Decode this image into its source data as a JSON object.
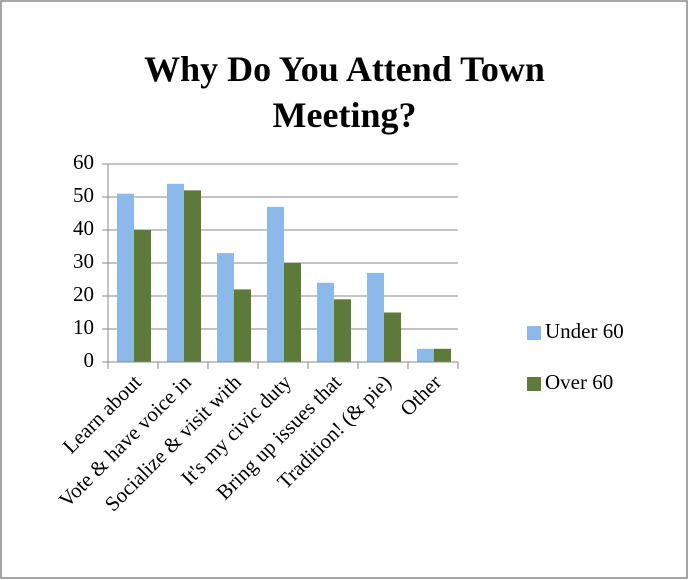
{
  "chart_data": {
    "type": "bar",
    "title": "Why Do You Attend Town Meeting?",
    "categories": [
      "Learn about",
      "Vote & have voice in",
      "Socialize & visit with",
      "It's my civic duty",
      "Bring up issues that",
      "Tradition! (& pie)",
      "Other"
    ],
    "series": [
      {
        "name": "Under 60",
        "color": "#8db8ea",
        "values": [
          51,
          54,
          33,
          47,
          24,
          27,
          4
        ]
      },
      {
        "name": "Over 60",
        "color": "#5e7a3a",
        "values": [
          40,
          52,
          22,
          30,
          19,
          15,
          4
        ]
      }
    ],
    "ylim": [
      0,
      60
    ],
    "yticks": [
      0,
      10,
      20,
      30,
      40,
      50,
      60
    ],
    "grid": true,
    "legend": "right"
  }
}
